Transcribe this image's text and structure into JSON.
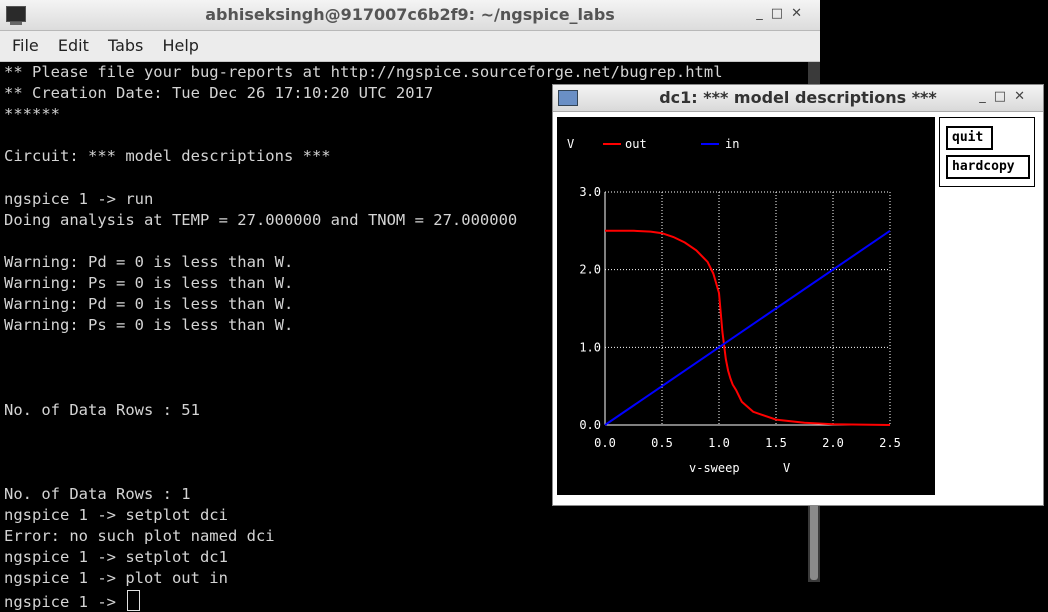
{
  "terminal": {
    "title": "abhiseksingh@917007c6b2f9: ~/ngspice_labs",
    "menu": [
      "File",
      "Edit",
      "Tabs",
      "Help"
    ],
    "lines": [
      "** Please file your bug-reports at http://ngspice.sourceforge.net/bugrep.html",
      "** Creation Date: Tue Dec 26 17:10:20 UTC 2017",
      "******",
      "",
      "Circuit: *** model descriptions ***",
      "",
      "ngspice 1 -> run",
      "Doing analysis at TEMP = 27.000000 and TNOM = 27.000000",
      "",
      "Warning: Pd = 0 is less than W.",
      "Warning: Ps = 0 is less than W.",
      "Warning: Pd = 0 is less than W.",
      "Warning: Ps = 0 is less than W.",
      "",
      "",
      "",
      "No. of Data Rows : 51",
      "",
      "",
      "",
      "No. of Data Rows : 1",
      "ngspice 1 -> setplot dci",
      "Error: no such plot named dci",
      "ngspice 1 -> setplot dc1",
      "ngspice 1 -> plot out in",
      "ngspice 1 -> "
    ]
  },
  "plot_window": {
    "title": "dc1: *** model descriptions ***",
    "buttons": {
      "quit": "quit",
      "hardcopy": "hardcopy"
    }
  },
  "chart_data": {
    "type": "line",
    "ylabel": "V",
    "xlabel": "v-sweep",
    "xunit": "V",
    "xlim": [
      0.0,
      2.5
    ],
    "ylim": [
      0.0,
      3.0
    ],
    "xticks": [
      "0.0",
      "0.5",
      "1.0",
      "1.5",
      "2.0",
      "2.5"
    ],
    "yticks": [
      "0.0",
      "1.0",
      "2.0",
      "3.0"
    ],
    "legend_placement": "top",
    "grid": true,
    "series": [
      {
        "name": "out",
        "color": "#ff0000",
        "x": [
          0.0,
          0.25,
          0.4,
          0.5,
          0.6,
          0.7,
          0.8,
          0.9,
          0.95,
          1.0,
          1.03,
          1.06,
          1.08,
          1.1,
          1.12,
          1.15,
          1.2,
          1.3,
          1.5,
          1.75,
          2.0,
          2.5
        ],
        "y": [
          2.5,
          2.5,
          2.49,
          2.47,
          2.42,
          2.35,
          2.25,
          2.1,
          1.95,
          1.7,
          1.2,
          0.85,
          0.7,
          0.6,
          0.52,
          0.45,
          0.3,
          0.17,
          0.07,
          0.03,
          0.01,
          0.0
        ]
      },
      {
        "name": "in",
        "color": "#0000ff",
        "x": [
          0.0,
          2.5
        ],
        "y": [
          0.0,
          2.5
        ]
      }
    ]
  }
}
